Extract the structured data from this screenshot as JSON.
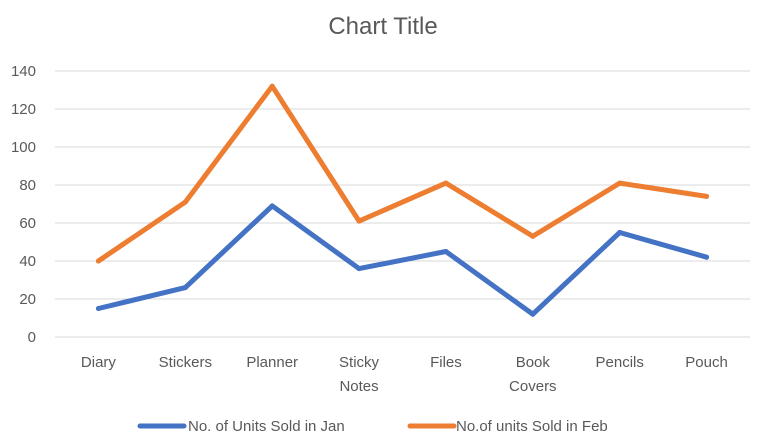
{
  "chart_data": {
    "type": "line",
    "title": "Chart Title",
    "categories": [
      [
        "Diary"
      ],
      [
        "Stickers"
      ],
      [
        "Planner"
      ],
      [
        "Sticky",
        "Notes"
      ],
      [
        "Files"
      ],
      [
        "Book",
        "Covers"
      ],
      [
        "Pencils"
      ],
      [
        "Pouch"
      ]
    ],
    "ylim": [
      0,
      140
    ],
    "yticks": [
      0,
      20,
      40,
      60,
      80,
      100,
      120,
      140
    ],
    "grid": true,
    "legend_position": "bottom",
    "series": [
      {
        "name": "No. of Units Sold in Jan",
        "color": "#4472C4",
        "values": [
          15,
          26,
          69,
          36,
          45,
          12,
          55,
          42
        ]
      },
      {
        "name": "No.of units Sold in Feb",
        "color": "#ED7D31",
        "values": [
          40,
          71,
          132,
          61,
          81,
          53,
          81,
          74
        ]
      }
    ]
  }
}
